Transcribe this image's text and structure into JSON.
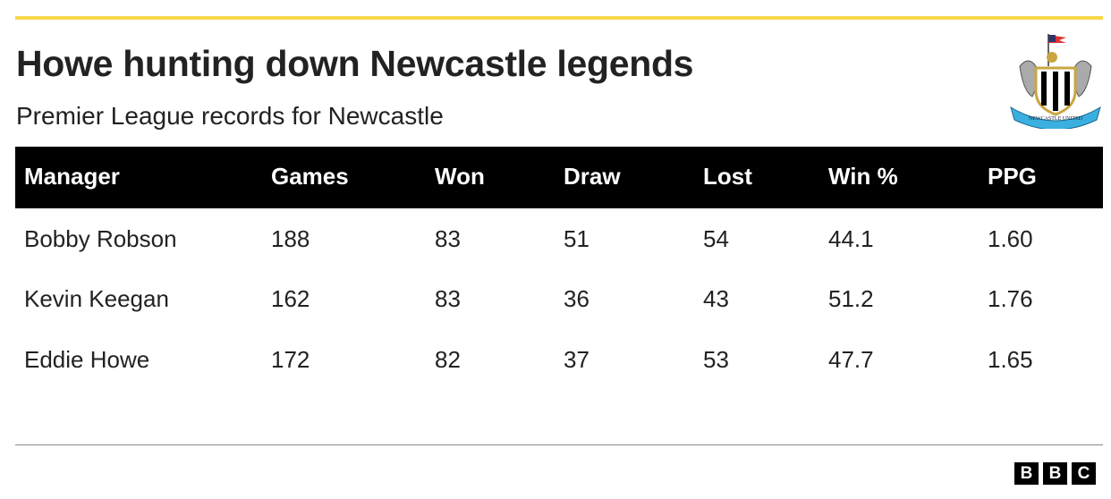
{
  "title": "Howe hunting down Newcastle legends",
  "subtitle": "Premier League records for Newcastle",
  "crest_text": "NEWCASTLE UNITED",
  "colors": {
    "accent_line": "#f6d74a",
    "header_bg": "#000000"
  },
  "table": {
    "columns": [
      "Manager",
      "Games",
      "Won",
      "Draw",
      "Lost",
      "Win %",
      "PPG"
    ],
    "rows": [
      [
        "Bobby Robson",
        "188",
        "83",
        "51",
        "54",
        "44.1",
        "1.60"
      ],
      [
        "Kevin Keegan",
        "162",
        "83",
        "36",
        "43",
        "51.2",
        "1.76"
      ],
      [
        "Eddie Howe",
        "172",
        "82",
        "37",
        "53",
        "47.7",
        "1.65"
      ]
    ]
  },
  "footer": {
    "logo": [
      "B",
      "B",
      "C"
    ]
  }
}
